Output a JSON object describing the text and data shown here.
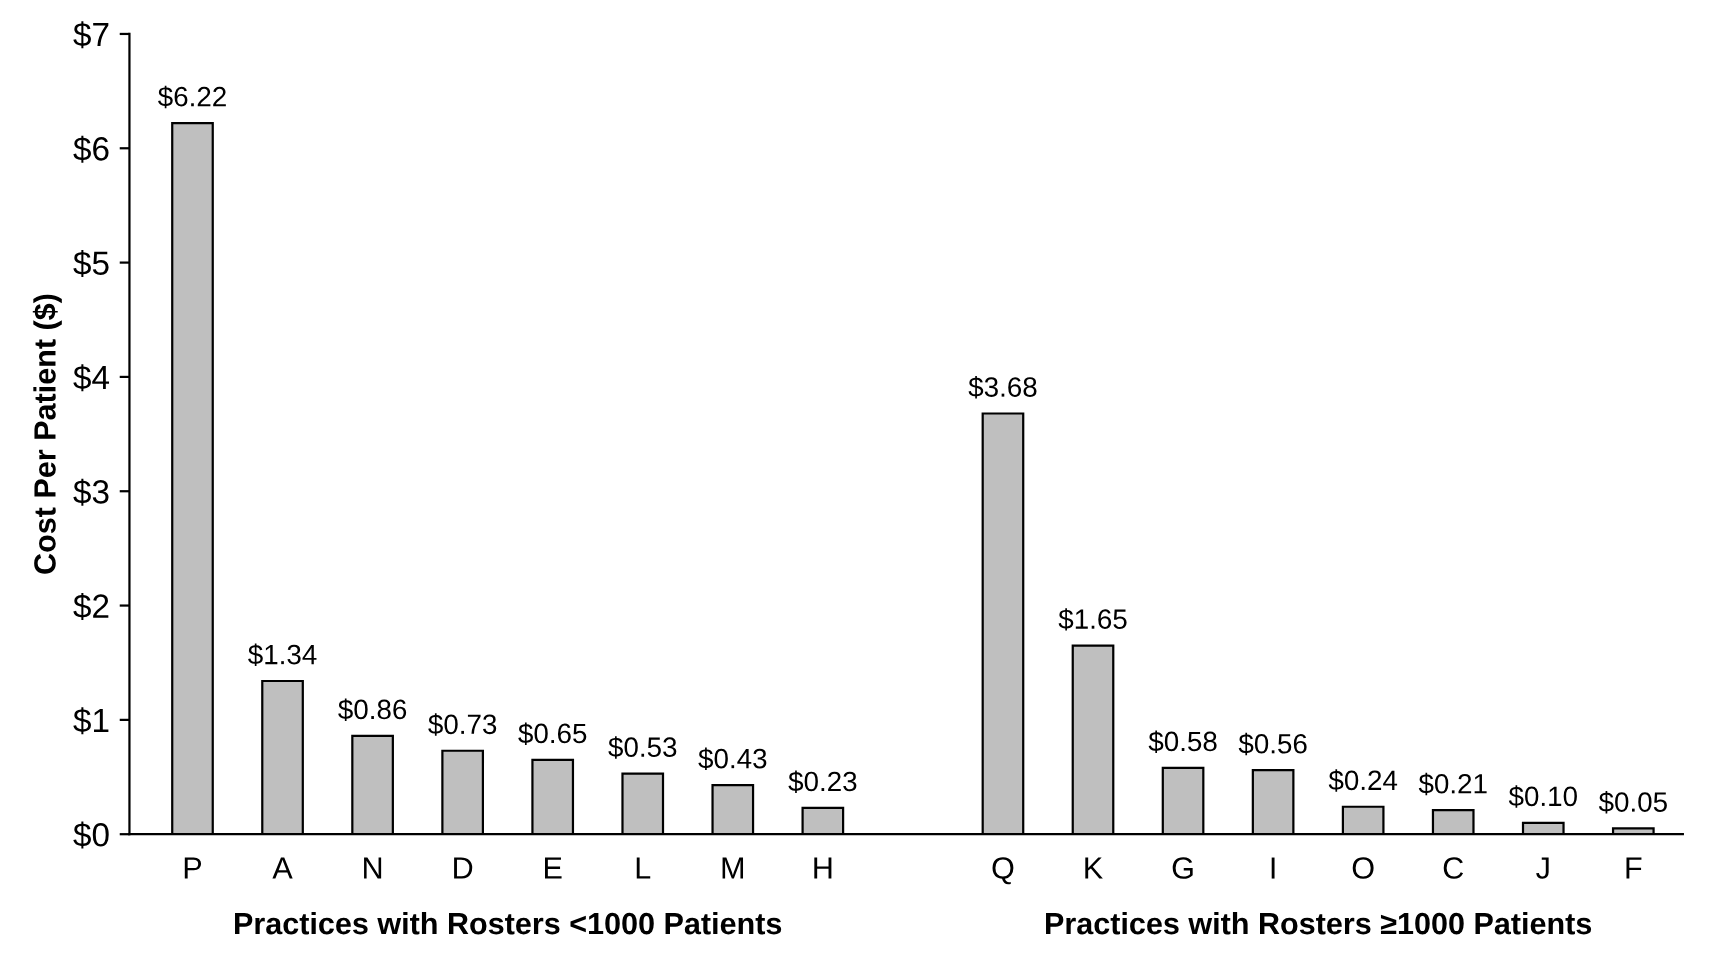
{
  "chart_data": {
    "type": "bar",
    "categories": [
      "P",
      "A",
      "N",
      "D",
      "E",
      "L",
      "M",
      "H",
      null,
      "Q",
      "K",
      "G",
      "I",
      "O",
      "C",
      "J",
      "F"
    ],
    "values": [
      6.22,
      1.34,
      0.86,
      0.73,
      0.65,
      0.53,
      0.43,
      0.23,
      null,
      3.68,
      1.65,
      0.58,
      0.56,
      0.24,
      0.21,
      0.1,
      0.05
    ],
    "value_labels": [
      "$6.22",
      "$1.34",
      "$0.86",
      "$0.73",
      "$0.65",
      "$0.53",
      "$0.43",
      "$0.23",
      null,
      "$3.68",
      "$1.65",
      "$0.58",
      "$0.56",
      "$0.24",
      "$0.21",
      "$0.10",
      "$0.05"
    ],
    "color": "#bfbfbf",
    "ylabel": "Cost Per Patient ($)",
    "ylim": [
      0,
      7
    ],
    "yticks": [
      {
        "value": 0,
        "label": "$0"
      },
      {
        "value": 1,
        "label": "$1"
      },
      {
        "value": 2,
        "label": "$2"
      },
      {
        "value": 3,
        "label": "$3"
      },
      {
        "value": 4,
        "label": "$4"
      },
      {
        "value": 5,
        "label": "$5"
      },
      {
        "value": 6,
        "label": "$6"
      },
      {
        "value": 7,
        "label": "$7"
      }
    ],
    "annotations": [
      "Practices with Rosters <1000 Patients",
      "Practices with Rosters ≥1000 Patients"
    ],
    "grid": false,
    "legend": false
  }
}
